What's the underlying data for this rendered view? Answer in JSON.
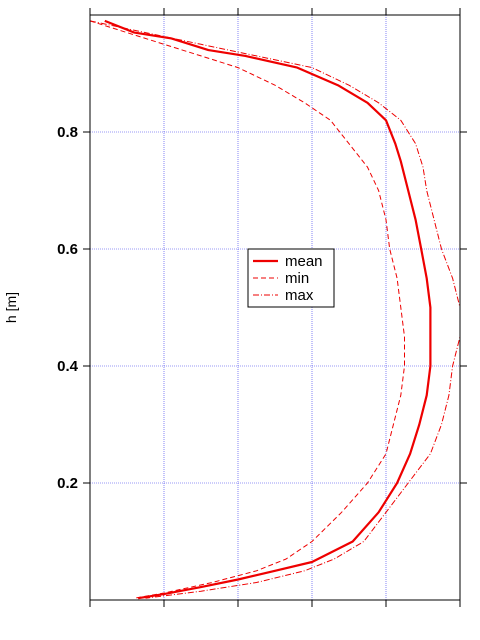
{
  "chart_data": {
    "type": "line",
    "title": "",
    "xlabel": "",
    "ylabel": "h [m]",
    "xlim": [
      0,
      1
    ],
    "ylim": [
      0,
      1
    ],
    "x_ticks": [
      0.0,
      0.2,
      0.4,
      0.6,
      0.8,
      1.0
    ],
    "y_ticks": [
      0.2,
      0.4,
      0.6,
      0.8
    ],
    "y_tick_labels": [
      "0.2",
      "0.4",
      "0.6",
      "0.8"
    ],
    "x_tick_labels_shown": false,
    "grid": true,
    "legend_position": "center",
    "colors": {
      "series": "#ee0000",
      "grid": "#3333ee",
      "axis": "#000000"
    },
    "series": [
      {
        "name": "mean",
        "style": "solid",
        "points": [
          [
            0.04,
            0.99
          ],
          [
            0.12,
            0.97
          ],
          [
            0.22,
            0.96
          ],
          [
            0.32,
            0.94
          ],
          [
            0.42,
            0.93
          ],
          [
            0.56,
            0.91
          ],
          [
            0.67,
            0.88
          ],
          [
            0.75,
            0.85
          ],
          [
            0.8,
            0.82
          ],
          [
            0.825,
            0.78
          ],
          [
            0.84,
            0.75
          ],
          [
            0.86,
            0.7
          ],
          [
            0.88,
            0.65
          ],
          [
            0.895,
            0.6
          ],
          [
            0.91,
            0.55
          ],
          [
            0.92,
            0.5
          ],
          [
            0.92,
            0.45
          ],
          [
            0.92,
            0.4
          ],
          [
            0.91,
            0.35
          ],
          [
            0.89,
            0.3
          ],
          [
            0.865,
            0.25
          ],
          [
            0.83,
            0.2
          ],
          [
            0.78,
            0.15
          ],
          [
            0.71,
            0.1
          ],
          [
            0.6,
            0.065
          ],
          [
            0.5,
            0.05
          ],
          [
            0.4,
            0.035
          ],
          [
            0.3,
            0.022
          ],
          [
            0.2,
            0.01
          ],
          [
            0.13,
            0.003
          ]
        ]
      },
      {
        "name": "min",
        "style": "dashed",
        "points": [
          [
            0.0,
            0.99
          ],
          [
            0.1,
            0.97
          ],
          [
            0.2,
            0.95
          ],
          [
            0.3,
            0.93
          ],
          [
            0.4,
            0.91
          ],
          [
            0.5,
            0.88
          ],
          [
            0.58,
            0.85
          ],
          [
            0.65,
            0.82
          ],
          [
            0.7,
            0.78
          ],
          [
            0.75,
            0.74
          ],
          [
            0.78,
            0.7
          ],
          [
            0.8,
            0.65
          ],
          [
            0.81,
            0.6
          ],
          [
            0.83,
            0.55
          ],
          [
            0.84,
            0.5
          ],
          [
            0.85,
            0.45
          ],
          [
            0.85,
            0.4
          ],
          [
            0.84,
            0.35
          ],
          [
            0.82,
            0.3
          ],
          [
            0.8,
            0.25
          ],
          [
            0.75,
            0.2
          ],
          [
            0.68,
            0.15
          ],
          [
            0.6,
            0.1
          ],
          [
            0.53,
            0.07
          ],
          [
            0.45,
            0.05
          ],
          [
            0.33,
            0.03
          ],
          [
            0.2,
            0.012
          ],
          [
            0.12,
            0.003
          ]
        ]
      },
      {
        "name": "max",
        "style": "dashdot",
        "points": [
          [
            0.0,
            0.99
          ],
          [
            0.15,
            0.97
          ],
          [
            0.3,
            0.95
          ],
          [
            0.45,
            0.93
          ],
          [
            0.6,
            0.91
          ],
          [
            0.7,
            0.88
          ],
          [
            0.78,
            0.85
          ],
          [
            0.84,
            0.82
          ],
          [
            0.88,
            0.78
          ],
          [
            0.9,
            0.74
          ],
          [
            0.91,
            0.7
          ],
          [
            0.93,
            0.65
          ],
          [
            0.95,
            0.6
          ],
          [
            0.98,
            0.55
          ],
          [
            1.0,
            0.5
          ],
          [
            1.0,
            0.45
          ],
          [
            0.98,
            0.4
          ],
          [
            0.97,
            0.35
          ],
          [
            0.95,
            0.3
          ],
          [
            0.92,
            0.25
          ],
          [
            0.86,
            0.2
          ],
          [
            0.8,
            0.15
          ],
          [
            0.74,
            0.1
          ],
          [
            0.66,
            0.07
          ],
          [
            0.58,
            0.05
          ],
          [
            0.45,
            0.03
          ],
          [
            0.3,
            0.015
          ],
          [
            0.15,
            0.003
          ]
        ]
      }
    ]
  }
}
